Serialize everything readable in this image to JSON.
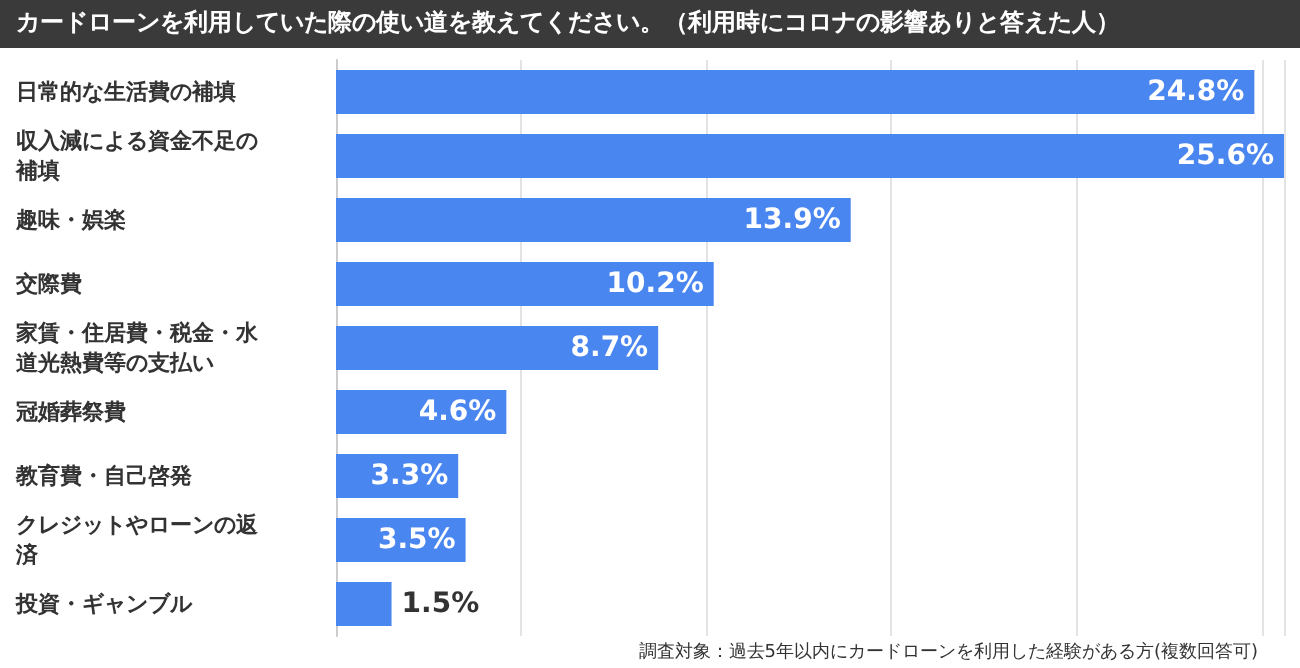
{
  "chart_data": {
    "type": "bar",
    "orientation": "horizontal",
    "title": "カードローンを利用していた際の使い道を教えてください。（利用時にコロナの影響ありと答えた人）",
    "categories": [
      "日常的な生活費の補填",
      "収入減による資金不足の補填",
      "趣味・娯楽",
      "交際費",
      "家賃・住居費・税金・水道光熱費等の支払い",
      "冠婚葬祭費",
      "教育費・自己啓発",
      "クレジットやローンの返済",
      "投資・ギャンブル"
    ],
    "values": [
      24.8,
      25.6,
      13.9,
      10.2,
      8.7,
      4.6,
      3.3,
      3.5,
      1.5
    ],
    "value_labels": [
      "24.8%",
      "25.6%",
      "13.9%",
      "10.2%",
      "8.7%",
      "4.6%",
      "3.3%",
      "3.5%",
      "1.5%"
    ],
    "color": "#4a86f0",
    "tick_labels": "y",
    "grid": "x",
    "annotations": [
      "調査対象：過去5年以内にカードローンを利用した経験がある方(複数回答可)"
    ]
  }
}
